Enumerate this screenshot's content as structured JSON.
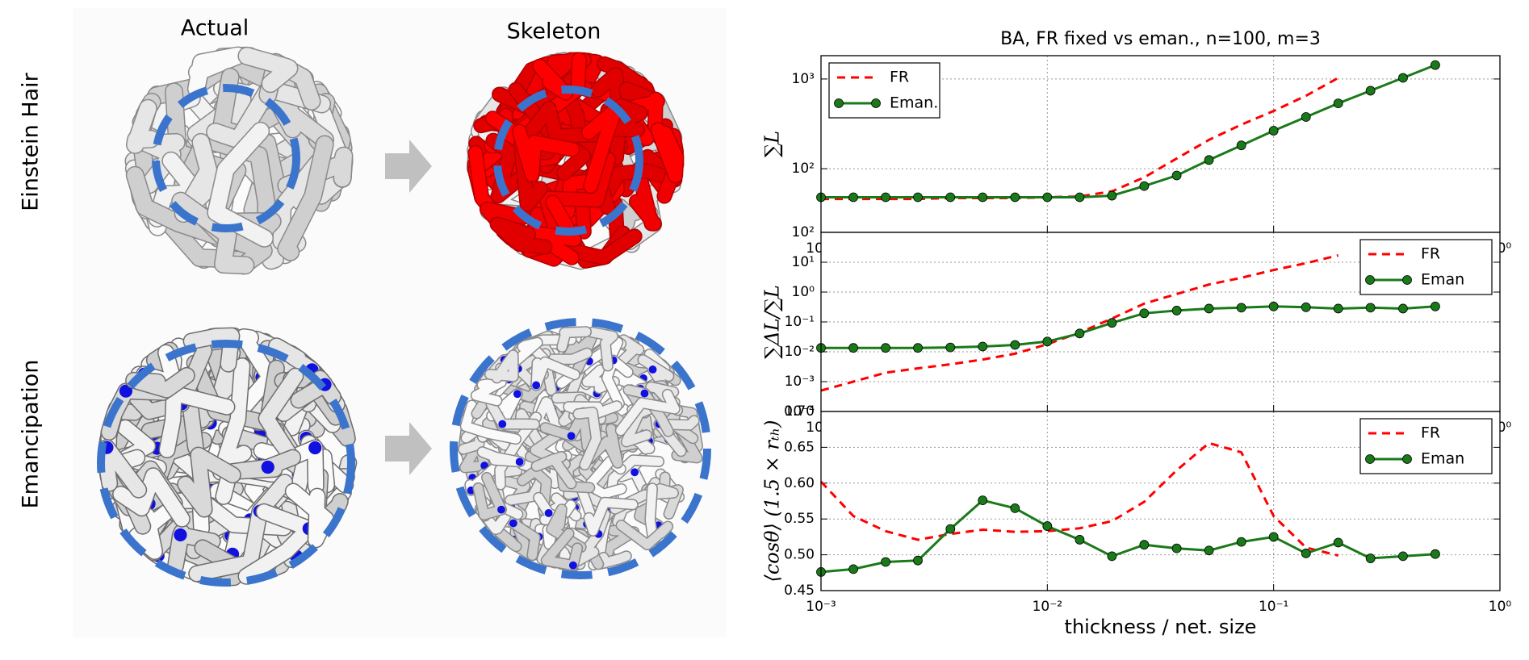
{
  "figure_labels": {
    "column_actual": "Actual",
    "column_skeleton": "Skeleton",
    "row_einstein": "Einstein Hair",
    "row_emancipation": "Emancipation"
  },
  "chart_data": [
    {
      "type": "line",
      "title": "BA, FR fixed vs eman., n=100, m=3",
      "ylabel": "∑L",
      "log_x": true,
      "log_y": true,
      "grid": true,
      "legend": "upper left",
      "x": [
        0.001,
        0.00139,
        0.00193,
        0.00268,
        0.00373,
        0.00518,
        0.0072,
        0.01,
        0.0139,
        0.0193,
        0.0268,
        0.0373,
        0.0518,
        0.072,
        0.1,
        0.139,
        0.193,
        0.268,
        0.373,
        0.518
      ],
      "xlim": [
        0.001,
        1
      ],
      "xticks": [
        {
          "value": 0.001,
          "label": "10⁻³"
        },
        {
          "value": 0.01,
          "label": "10⁻²"
        },
        {
          "value": 0.1,
          "label": "10⁻¹"
        },
        {
          "value": 1,
          "label": "10⁰"
        }
      ],
      "ylim": [
        19.5,
        1820
      ],
      "yticks": [
        {
          "value": 100,
          "label": "10²"
        },
        {
          "value": 1000,
          "label": "10³"
        }
      ],
      "series": [
        {
          "name": "FR",
          "color": "#ff0000",
          "linestyle": "dashed",
          "marker": "none",
          "values": [
            46,
            46,
            46,
            46,
            47,
            47,
            47,
            48,
            49,
            56,
            80,
            130,
            210,
            310,
            440,
            650,
            1030,
            null,
            null,
            null
          ]
        },
        {
          "name": "Eman.",
          "color": "#1a7a1a",
          "linestyle": "solid",
          "marker": "circle",
          "values": [
            48,
            48,
            48,
            48,
            48,
            48,
            48,
            48,
            48,
            50,
            64,
            84,
            125,
            182,
            265,
            377,
            535,
            740,
            1030,
            1430
          ]
        }
      ]
    },
    {
      "type": "line",
      "ylabel": "∑ΔL/∑L",
      "log_x": true,
      "log_y": true,
      "grid": true,
      "legend": "upper right",
      "x": [
        0.001,
        0.00139,
        0.00193,
        0.00268,
        0.00373,
        0.00518,
        0.0072,
        0.01,
        0.0139,
        0.0193,
        0.0268,
        0.0373,
        0.0518,
        0.072,
        0.1,
        0.139,
        0.193,
        0.268,
        0.373,
        0.518
      ],
      "xlim": [
        0.001,
        1
      ],
      "xticks": [
        {
          "value": 0.001,
          "label": "10⁻³"
        },
        {
          "value": 0.01,
          "label": "10⁻²"
        },
        {
          "value": 0.1,
          "label": "10⁻¹"
        },
        {
          "value": 1,
          "label": "10⁰"
        }
      ],
      "ylim": [
        0.0001,
        100
      ],
      "yticks": [
        {
          "value": 0.0001,
          "label": "10⁻⁴"
        },
        {
          "value": 0.001,
          "label": "10⁻³"
        },
        {
          "value": 0.01,
          "label": "10⁻²"
        },
        {
          "value": 0.1,
          "label": "10⁻¹"
        },
        {
          "value": 1,
          "label": "10⁰"
        },
        {
          "value": 10,
          "label": "10¹"
        },
        {
          "value": 100,
          "label": "10²"
        }
      ],
      "series": [
        {
          "name": "FR",
          "color": "#ff0000",
          "linestyle": "dashed",
          "marker": "none",
          "values": [
            0.0005,
            0.001,
            0.002,
            0.0028,
            0.0038,
            0.0055,
            0.0086,
            0.018,
            0.044,
            0.13,
            0.41,
            0.86,
            1.8,
            3.0,
            5.5,
            9.3,
            17,
            null,
            null,
            null
          ]
        },
        {
          "name": "Eman",
          "color": "#1a7a1a",
          "linestyle": "solid",
          "marker": "circle",
          "values": [
            0.0135,
            0.0135,
            0.0135,
            0.0135,
            0.014,
            0.015,
            0.017,
            0.022,
            0.041,
            0.093,
            0.195,
            0.24,
            0.28,
            0.3,
            0.33,
            0.31,
            0.28,
            0.3,
            0.28,
            0.33
          ]
        }
      ]
    },
    {
      "type": "line",
      "ylabel": "⟨cosθ⟩ (1.5 × rₜₕ)",
      "xlabel": "thickness / net. size",
      "log_x": true,
      "log_y": false,
      "grid": true,
      "legend": "upper right",
      "x": [
        0.001,
        0.00139,
        0.00193,
        0.00268,
        0.00373,
        0.00518,
        0.0072,
        0.01,
        0.0139,
        0.0193,
        0.0268,
        0.0373,
        0.0518,
        0.072,
        0.1,
        0.139,
        0.193,
        0.268,
        0.373,
        0.518
      ],
      "xlim": [
        0.001,
        1
      ],
      "xticks": [
        {
          "value": 0.001,
          "label": "10⁻³"
        },
        {
          "value": 0.01,
          "label": "10⁻²"
        },
        {
          "value": 0.1,
          "label": "10⁻¹"
        },
        {
          "value": 1,
          "label": "10⁰"
        }
      ],
      "ylim": [
        0.45,
        0.7
      ],
      "yticks": [
        0.45,
        {
          "value": 0.5,
          "label": "0.50"
        },
        0.55,
        {
          "value": 0.6,
          "label": "0.60"
        },
        0.65,
        {
          "value": 0.7,
          "label": "0.70"
        }
      ],
      "series": [
        {
          "name": "FR",
          "color": "#ff0000",
          "linestyle": "dashed",
          "marker": "none",
          "values": [
            0.602,
            0.554,
            0.533,
            0.521,
            0.529,
            0.535,
            0.532,
            0.533,
            0.537,
            0.547,
            0.574,
            0.618,
            0.656,
            0.643,
            0.554,
            0.51,
            0.499,
            null,
            null,
            null
          ]
        },
        {
          "name": "Eman",
          "color": "#1a7a1a",
          "linestyle": "solid",
          "marker": "circle",
          "values": [
            0.476,
            0.48,
            0.49,
            0.492,
            0.536,
            0.576,
            0.565,
            0.54,
            0.521,
            0.498,
            0.514,
            0.509,
            0.506,
            0.518,
            0.525,
            0.502,
            0.517,
            0.495,
            0.498,
            0.501
          ]
        }
      ]
    }
  ]
}
